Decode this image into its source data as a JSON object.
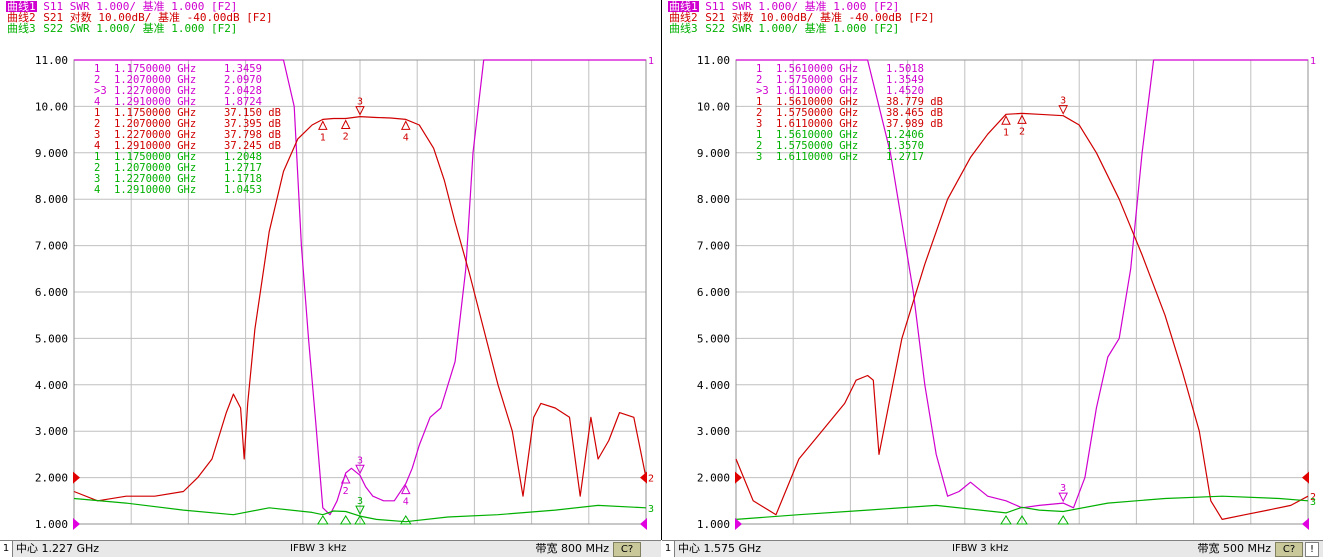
{
  "panels": [
    {
      "id": "left",
      "headers": [
        {
          "tag": "曲线1",
          "rest": " S11 SWR 1.000/ 基准 1.000 [F2]",
          "color": "#d000d0",
          "active": true
        },
        {
          "tag": "曲线2",
          "rest": " S21 对数 10.00dB/ 基准 -40.00dB [F2]",
          "color": "#d00000",
          "active": false
        },
        {
          "tag": "曲线3",
          "rest": " S22 SWR 1.000/ 基准 1.000 [F2]",
          "color": "#00b000",
          "active": false
        }
      ],
      "markers_table": [
        {
          "label": "1",
          "freq": "1.1750000 GHz",
          "value": "1.3459",
          "color": "#d000d0"
        },
        {
          "label": "2",
          "freq": "1.2070000 GHz",
          "value": "2.0970",
          "color": "#d000d0"
        },
        {
          "label": ">3",
          "freq": "1.2270000 GHz",
          "value": "2.0428",
          "color": "#d000d0"
        },
        {
          "label": "4",
          "freq": "1.2910000 GHz",
          "value": "1.8724",
          "color": "#d000d0"
        },
        {
          "label": "1",
          "freq": "1.1750000 GHz",
          "value": "37.150 dB",
          "color": "#d00000"
        },
        {
          "label": "2",
          "freq": "1.2070000 GHz",
          "value": "37.395 dB",
          "color": "#d00000"
        },
        {
          "label": "3",
          "freq": "1.2270000 GHz",
          "value": "37.798 dB",
          "color": "#d00000"
        },
        {
          "label": "4",
          "freq": "1.2910000 GHz",
          "value": "37.245 dB",
          "color": "#d00000"
        },
        {
          "label": "1",
          "freq": "1.1750000 GHz",
          "value": "1.2048",
          "color": "#00b000"
        },
        {
          "label": "2",
          "freq": "1.2070000 GHz",
          "value": "1.2717",
          "color": "#00b000"
        },
        {
          "label": "3",
          "freq": "1.2270000 GHz",
          "value": "1.1718",
          "color": "#00b000"
        },
        {
          "label": "4",
          "freq": "1.2910000 GHz",
          "value": "1.0453",
          "color": "#00b000"
        }
      ],
      "status": {
        "channel": "1",
        "center": "中心 1.227 GHz",
        "ifbw": "IFBW 3 kHz",
        "span": "带宽 800 MHz",
        "button": "C?",
        "extra": ""
      }
    },
    {
      "id": "right",
      "headers": [
        {
          "tag": "曲线1",
          "rest": " S11 SWR 1.000/ 基准 1.000 [F2]",
          "color": "#d000d0",
          "active": true
        },
        {
          "tag": "曲线2",
          "rest": " S21 对数 10.00dB/ 基准 -40.00dB [F2]",
          "color": "#d00000",
          "active": false
        },
        {
          "tag": "曲线3",
          "rest": " S22 SWR 1.000/ 基准 1.000 [F2]",
          "color": "#00b000",
          "active": false
        }
      ],
      "markers_table": [
        {
          "label": "1",
          "freq": "1.5610000 GHz",
          "value": "1.5018",
          "color": "#d000d0"
        },
        {
          "label": "2",
          "freq": "1.5750000 GHz",
          "value": "1.3549",
          "color": "#d000d0"
        },
        {
          "label": ">3",
          "freq": "1.6110000 GHz",
          "value": "1.4520",
          "color": "#d000d0"
        },
        {
          "label": "1",
          "freq": "1.5610000 GHz",
          "value": "38.779 dB",
          "color": "#d00000"
        },
        {
          "label": "2",
          "freq": "1.5750000 GHz",
          "value": "38.465 dB",
          "color": "#d00000"
        },
        {
          "label": "3",
          "freq": "1.6110000 GHz",
          "value": "37.989 dB",
          "color": "#d00000"
        },
        {
          "label": "1",
          "freq": "1.5610000 GHz",
          "value": "1.2406",
          "color": "#00b000"
        },
        {
          "label": "2",
          "freq": "1.5750000 GHz",
          "value": "1.3570",
          "color": "#00b000"
        },
        {
          "label": "3",
          "freq": "1.6110000 GHz",
          "value": "1.2717",
          "color": "#00b000"
        }
      ],
      "status": {
        "channel": "1",
        "center": "中心 1.575 GHz",
        "ifbw": "IFBW 3 kHz",
        "span": "带宽 500 MHz",
        "button": "C?",
        "extra": "!"
      }
    }
  ],
  "chart_data": [
    {
      "type": "line",
      "y_tick_labels": [
        "11.00",
        "10.00",
        "9.000",
        "8.000",
        "7.000",
        "6.000",
        "5.000",
        "4.000",
        "3.000",
        "2.000",
        "1.000"
      ],
      "ylim": [
        1,
        11
      ],
      "x_unit": "GHz",
      "xlim": [
        0.827,
        1.627
      ],
      "grid": true,
      "series": [
        {
          "color": "#d000d0",
          "trace_label": "1",
          "x": [
            0.827,
            1.075,
            1.12,
            1.135,
            1.145,
            1.155,
            1.165,
            1.175,
            1.185,
            1.195,
            1.207,
            1.215,
            1.227,
            1.235,
            1.245,
            1.26,
            1.275,
            1.291,
            1.3,
            1.31,
            1.325,
            1.34,
            1.36,
            1.375,
            1.385,
            1.4,
            1.627
          ],
          "y": [
            11,
            11,
            11,
            10,
            7,
            5,
            3.2,
            1.35,
            1.2,
            1.5,
            2.1,
            2.2,
            2.05,
            1.8,
            1.6,
            1.5,
            1.5,
            1.87,
            2.2,
            2.7,
            3.3,
            3.5,
            4.5,
            6.5,
            9,
            11,
            11
          ]
        },
        {
          "color": "#d00000",
          "trace_label": "2",
          "x": [
            0.827,
            0.86,
            0.9,
            0.94,
            0.98,
            1.0,
            1.02,
            1.04,
            1.05,
            1.06,
            1.065,
            1.07,
            1.08,
            1.1,
            1.12,
            1.14,
            1.16,
            1.175,
            1.19,
            1.207,
            1.227,
            1.25,
            1.27,
            1.291,
            1.31,
            1.33,
            1.345,
            1.36,
            1.38,
            1.4,
            1.42,
            1.44,
            1.455,
            1.47,
            1.48,
            1.5,
            1.52,
            1.535,
            1.55,
            1.56,
            1.575,
            1.59,
            1.61,
            1.627
          ],
          "y": [
            1.7,
            1.5,
            1.6,
            1.6,
            1.7,
            2.0,
            2.4,
            3.4,
            3.8,
            3.5,
            2.4,
            3.6,
            5.2,
            7.3,
            8.6,
            9.3,
            9.6,
            9.72,
            9.74,
            9.74,
            9.78,
            9.76,
            9.75,
            9.72,
            9.6,
            9.1,
            8.4,
            7.5,
            6.4,
            5.2,
            4.0,
            3.0,
            1.6,
            3.3,
            3.6,
            3.5,
            3.3,
            1.6,
            3.3,
            2.4,
            2.8,
            3.4,
            3.3,
            2.0
          ]
        },
        {
          "color": "#00b000",
          "trace_label": "3",
          "x": [
            0.827,
            0.9,
            0.98,
            1.05,
            1.1,
            1.16,
            1.175,
            1.19,
            1.207,
            1.227,
            1.25,
            1.291,
            1.35,
            1.42,
            1.5,
            1.56,
            1.627
          ],
          "y": [
            1.55,
            1.45,
            1.3,
            1.2,
            1.35,
            1.25,
            1.2,
            1.28,
            1.27,
            1.17,
            1.1,
            1.05,
            1.15,
            1.2,
            1.3,
            1.4,
            1.35
          ]
        }
      ],
      "markers": [
        {
          "x": 1.175,
          "y": 9.72,
          "label": "1",
          "color": "#d00000",
          "dir": "up"
        },
        {
          "x": 1.207,
          "y": 9.74,
          "label": "2",
          "color": "#d00000",
          "dir": "up"
        },
        {
          "x": 1.227,
          "y": 9.78,
          "label": "3",
          "color": "#d00000",
          "dir": "down"
        },
        {
          "x": 1.291,
          "y": 9.72,
          "label": "4",
          "color": "#d00000",
          "dir": "up"
        },
        {
          "x": 1.207,
          "y": 2.1,
          "label": "2",
          "color": "#d000d0",
          "dir": "up"
        },
        {
          "x": 1.227,
          "y": 2.05,
          "label": "3",
          "color": "#d000d0",
          "dir": "down"
        },
        {
          "x": 1.291,
          "y": 1.87,
          "label": "4",
          "color": "#d000d0",
          "dir": "up"
        },
        {
          "x": 1.227,
          "y": 1.17,
          "label": "3",
          "color": "#00b000",
          "dir": "down"
        }
      ]
    },
    {
      "type": "line",
      "y_tick_labels": [
        "11.00",
        "10.00",
        "9.000",
        "8.000",
        "7.000",
        "6.000",
        "5.000",
        "4.000",
        "3.000",
        "2.000",
        "1.000"
      ],
      "ylim": [
        1,
        11
      ],
      "x_unit": "GHz",
      "xlim": [
        1.325,
        1.825
      ],
      "grid": true,
      "series": [
        {
          "color": "#d000d0",
          "trace_label": "1",
          "x": [
            1.325,
            1.44,
            1.46,
            1.48,
            1.49,
            1.5,
            1.51,
            1.52,
            1.53,
            1.545,
            1.561,
            1.575,
            1.59,
            1.611,
            1.62,
            1.63,
            1.64,
            1.65,
            1.66,
            1.67,
            1.68,
            1.69,
            1.825
          ],
          "y": [
            11,
            11,
            9,
            6,
            4,
            2.5,
            1.6,
            1.7,
            1.9,
            1.6,
            1.5,
            1.35,
            1.4,
            1.45,
            1.35,
            2,
            3.5,
            4.6,
            5,
            6.5,
            9,
            11,
            11
          ]
        },
        {
          "color": "#d00000",
          "trace_label": "2",
          "x": [
            1.325,
            1.34,
            1.36,
            1.38,
            1.4,
            1.42,
            1.43,
            1.44,
            1.445,
            1.45,
            1.47,
            1.49,
            1.51,
            1.53,
            1.545,
            1.561,
            1.575,
            1.59,
            1.611,
            1.625,
            1.64,
            1.66,
            1.68,
            1.7,
            1.715,
            1.73,
            1.74,
            1.75,
            1.77,
            1.79,
            1.81,
            1.825
          ],
          "y": [
            2.4,
            1.5,
            1.2,
            2.4,
            3.0,
            3.6,
            4.1,
            4.2,
            4.1,
            2.5,
            5.0,
            6.6,
            8.0,
            8.9,
            9.4,
            9.83,
            9.85,
            9.83,
            9.8,
            9.6,
            9.0,
            8.0,
            6.8,
            5.5,
            4.3,
            3.0,
            1.5,
            1.1,
            1.2,
            1.3,
            1.4,
            1.6
          ]
        },
        {
          "color": "#00b000",
          "trace_label": "3",
          "x": [
            1.325,
            1.38,
            1.44,
            1.5,
            1.561,
            1.575,
            1.59,
            1.611,
            1.65,
            1.7,
            1.75,
            1.8,
            1.825
          ],
          "y": [
            1.1,
            1.2,
            1.3,
            1.4,
            1.24,
            1.36,
            1.3,
            1.27,
            1.45,
            1.55,
            1.6,
            1.55,
            1.5
          ]
        }
      ],
      "markers": [
        {
          "x": 1.561,
          "y": 9.83,
          "label": "1",
          "color": "#d00000",
          "dir": "up"
        },
        {
          "x": 1.575,
          "y": 9.85,
          "label": "2",
          "color": "#d00000",
          "dir": "up"
        },
        {
          "x": 1.611,
          "y": 9.8,
          "label": "3",
          "color": "#d00000",
          "dir": "down"
        },
        {
          "x": 1.611,
          "y": 1.45,
          "label": "3",
          "color": "#d000d0",
          "dir": "down"
        }
      ]
    }
  ]
}
